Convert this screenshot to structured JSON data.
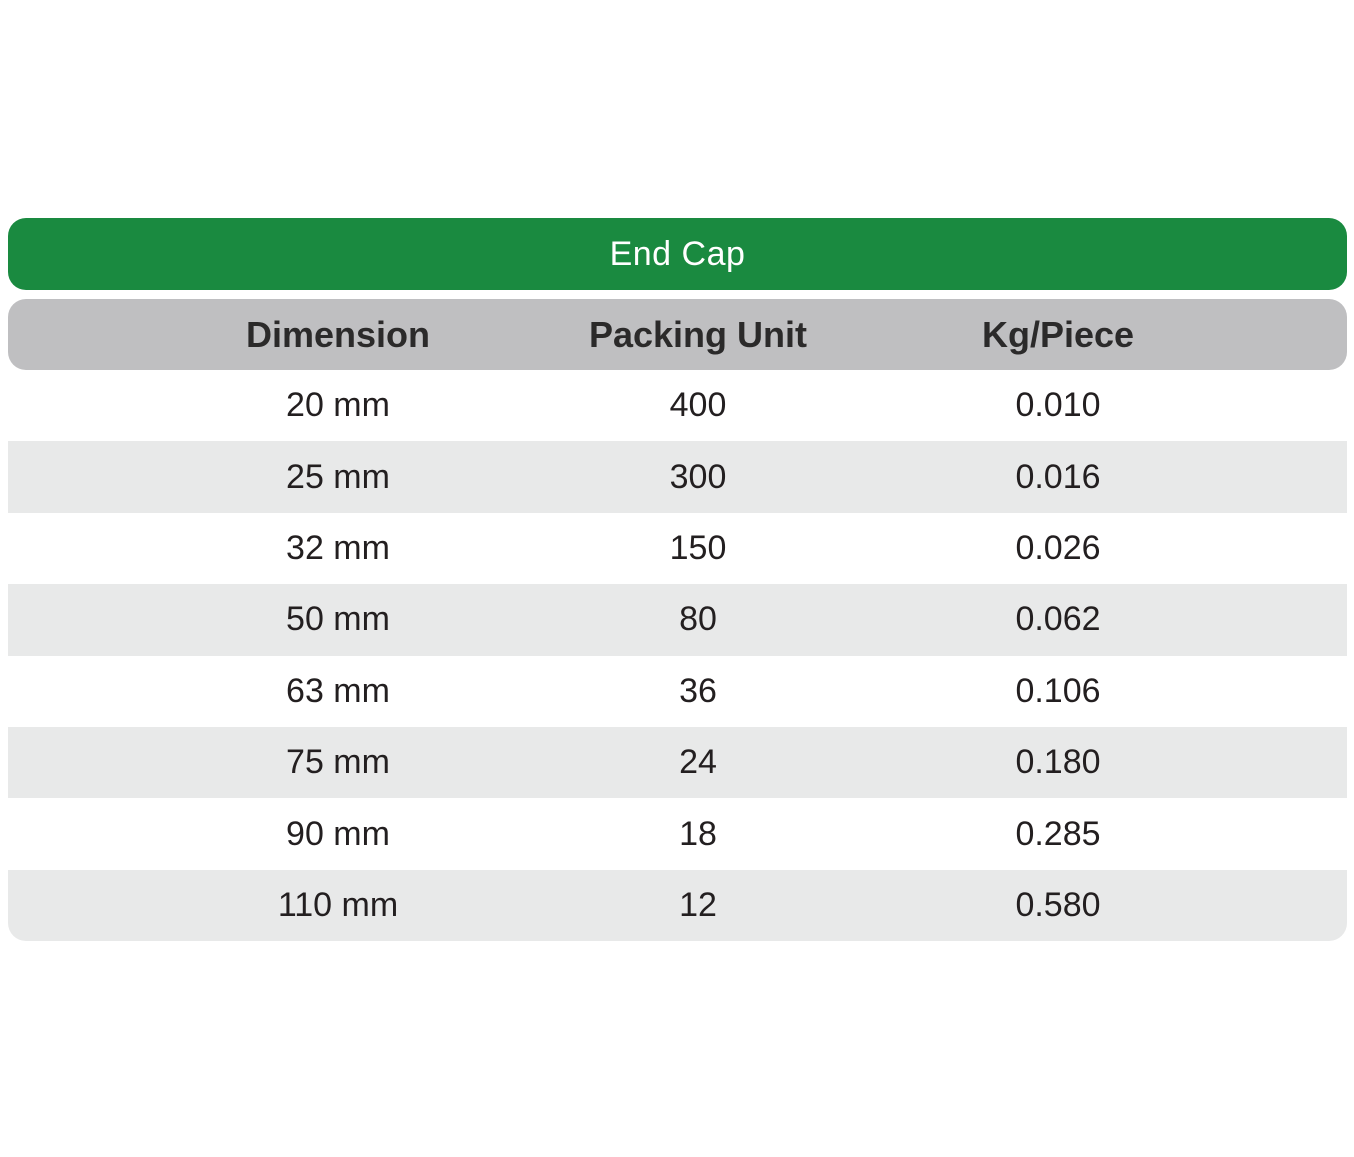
{
  "title_bar": {
    "label": "End Cap"
  },
  "table": {
    "columns": [
      "Dimension",
      "Packing Unit",
      "Kg/Piece"
    ],
    "rows": [
      {
        "dimension": "20 mm",
        "packing_unit": "400",
        "kg_per_piece": "0.010"
      },
      {
        "dimension": "25 mm",
        "packing_unit": "300",
        "kg_per_piece": "0.016"
      },
      {
        "dimension": "32 mm",
        "packing_unit": "150",
        "kg_per_piece": "0.026"
      },
      {
        "dimension": "50 mm",
        "packing_unit": "80",
        "kg_per_piece": "0.062"
      },
      {
        "dimension": "63 mm",
        "packing_unit": "36",
        "kg_per_piece": "0.106"
      },
      {
        "dimension": "75 mm",
        "packing_unit": "24",
        "kg_per_piece": "0.180"
      },
      {
        "dimension": "90 mm",
        "packing_unit": "18",
        "kg_per_piece": "0.285"
      },
      {
        "dimension": "110 mm",
        "packing_unit": "12",
        "kg_per_piece": "0.580"
      }
    ]
  },
  "colors": {
    "accent_green": "#1a8a40",
    "header_gray": "#bfbfc1",
    "stripe_gray": "#e8e9e9",
    "text": "#231f20"
  }
}
